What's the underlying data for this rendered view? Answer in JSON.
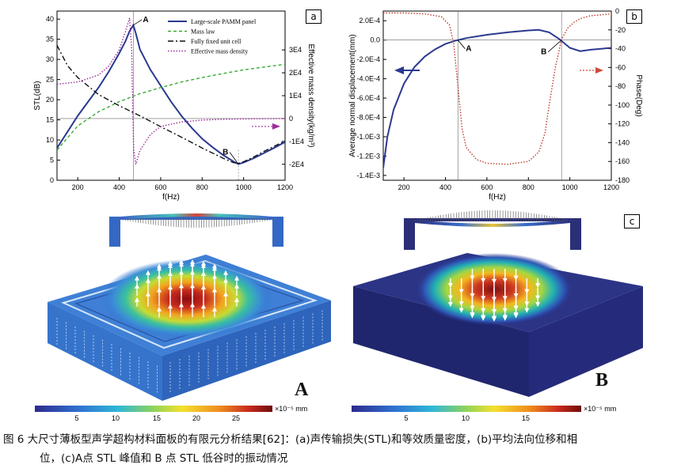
{
  "panels": {
    "a": {
      "tag": "a"
    },
    "b": {
      "tag": "b"
    },
    "c": {
      "tag": "c"
    }
  },
  "chart_data": [
    {
      "type": "line",
      "panel": "a",
      "xlabel": "f(Hz)",
      "ylabel_left": "STL(dB)",
      "ylabel_right": "Effective mass density(kg/m³)",
      "xlim": [
        100,
        1200
      ],
      "ylim_left": [
        0,
        42
      ],
      "ylim_right": [
        -27000.0,
        47000.0
      ],
      "x_ticks": [
        200,
        400,
        600,
        800,
        1000,
        1200
      ],
      "y_ticks_left": [
        0,
        5,
        10,
        15,
        20,
        25,
        30,
        35,
        40
      ],
      "y_ticks_right": [
        "-2E4",
        "-1E4",
        "0",
        "1E4",
        "2E4",
        "3E4"
      ],
      "y_ticks_right_values": [
        -20000,
        -10000,
        0,
        10000,
        20000,
        30000
      ],
      "annotations": [
        {
          "label": "A",
          "x": 468,
          "y": 38.5
        },
        {
          "label": "B",
          "x": 975,
          "y": 4
        }
      ],
      "series": [
        {
          "name": "Large-scale PAMM panel",
          "axis": "left",
          "color": "#2b3990",
          "style": "solid",
          "x": [
            100,
            150,
            200,
            250,
            300,
            350,
            400,
            430,
            450,
            468,
            480,
            500,
            550,
            600,
            650,
            700,
            750,
            800,
            850,
            900,
            950,
            975,
            1000,
            1050,
            1100,
            1150,
            1200
          ],
          "y": [
            8,
            12,
            16,
            19.5,
            23,
            27,
            31.5,
            34.5,
            37,
            38.5,
            36.5,
            32.5,
            27.5,
            23.5,
            19.5,
            16,
            13,
            10.3,
            8.2,
            6.3,
            4.7,
            4,
            4.4,
            5.5,
            6.8,
            8.1,
            9.5
          ]
        },
        {
          "name": "Mass law",
          "axis": "left",
          "color": "#3aaa35",
          "style": "dashed",
          "x": [
            100,
            200,
            300,
            400,
            500,
            600,
            700,
            800,
            900,
            1000,
            1100,
            1200
          ],
          "y": [
            7.5,
            13.5,
            17,
            19.5,
            21.5,
            23,
            24.4,
            25.5,
            26.5,
            27.4,
            28.1,
            28.8
          ]
        },
        {
          "name": "Fully fixed unit cell",
          "axis": "left",
          "color": "#111111",
          "style": "dashdot",
          "x": [
            100,
            150,
            200,
            300,
            400,
            500,
            600,
            700,
            800,
            900,
            950,
            975,
            1000,
            1050,
            1100,
            1150,
            1200
          ],
          "y": [
            33.5,
            28.5,
            25.5,
            21.3,
            18.5,
            16,
            13.3,
            10.7,
            8,
            5.5,
            4.4,
            4.2,
            4.6,
            5.8,
            7.2,
            8.5,
            9.8
          ]
        },
        {
          "name": "Effective mass density",
          "axis": "right",
          "color": "#9b2d9b",
          "style": "dotted",
          "x": [
            100,
            200,
            300,
            350,
            400,
            430,
            450,
            460,
            465,
            470,
            480,
            500,
            550,
            600,
            700,
            800,
            900,
            1000,
            1100,
            1200
          ],
          "y": [
            15000,
            16000,
            19000,
            23000,
            30000,
            38000,
            44000,
            30000,
            5000,
            -14000,
            -20000,
            -14000,
            -7000,
            -3500,
            -1500,
            -700,
            -350,
            -150,
            -60,
            0
          ]
        }
      ],
      "legend": [
        "Large-scale PAMM panel",
        "Mass law",
        "Fully fixed unit cell",
        "Effective  mass density"
      ]
    },
    {
      "type": "line",
      "panel": "b",
      "xlabel": "f(Hz)",
      "ylabel_left": "Average normal displacement(mm)",
      "ylabel_right": "Phase(Deg)",
      "xlim": [
        100,
        1200
      ],
      "ylim_left": [
        -0.00145,
        0.0003
      ],
      "ylim_right": [
        -180,
        0
      ],
      "x_ticks": [
        200,
        400,
        600,
        800,
        1000,
        1200
      ],
      "y_ticks_left": [
        "2.0E-4",
        "0.0",
        "-2.0E-4",
        "-4.0E-4",
        "-6.0E-4",
        "-8.0E-4",
        "-1.0E-3",
        "-1.2E-3",
        "-1.4E-3"
      ],
      "y_ticks_left_values": [
        0.0002,
        0,
        -0.0002,
        -0.0004,
        -0.0006,
        -0.0008,
        -0.001,
        -0.0012,
        -0.0014
      ],
      "y_ticks_right": [
        "0",
        "-20",
        "-40",
        "-60",
        "-80",
        "-100",
        "-120",
        "-140",
        "-160",
        "-180"
      ],
      "y_ticks_right_values": [
        0,
        -20,
        -40,
        -60,
        -80,
        -100,
        -120,
        -140,
        -160,
        -180
      ],
      "annotations": [
        {
          "label": "A",
          "x": 460,
          "y": 0
        },
        {
          "label": "B",
          "x": 960,
          "y": 0
        }
      ],
      "series": [
        {
          "name": "Average normal displacement",
          "axis": "left",
          "color": "#2b3990",
          "style": "solid",
          "x": [
            100,
            120,
            150,
            200,
            250,
            300,
            350,
            400,
            450,
            460,
            500,
            600,
            700,
            800,
            850,
            900,
            950,
            1000,
            1050,
            1100,
            1200
          ],
          "y": [
            -0.00132,
            -0.001,
            -0.00072,
            -0.00045,
            -0.00028,
            -0.00017,
            -9.5e-05,
            -4e-05,
            -5e-06,
            0,
            2e-05,
            5.5e-05,
            8e-05,
            0.0001,
            0.000105,
            8e-05,
            1e-05,
            -8e-05,
            -0.000115,
            -0.0001,
            -8e-05
          ]
        },
        {
          "name": "Phase",
          "axis": "right",
          "color": "#c0392b",
          "style": "dotted",
          "x": [
            100,
            200,
            300,
            380,
            420,
            440,
            460,
            480,
            500,
            550,
            600,
            700,
            800,
            850,
            880,
            900,
            930,
            960,
            990,
            1020,
            1050,
            1100,
            1200
          ],
          "y": [
            -2,
            -2,
            -3,
            -6,
            -15,
            -35,
            -80,
            -125,
            -145,
            -158,
            -162,
            -163,
            -160,
            -150,
            -130,
            -100,
            -60,
            -30,
            -18,
            -12,
            -8,
            -5,
            -3
          ]
        }
      ]
    }
  ],
  "colorbars": [
    {
      "name": "A",
      "ticks": [
        "5",
        "10",
        "15",
        "20",
        "25"
      ],
      "unit": "×10⁻⁵  mm"
    },
    {
      "name": "B",
      "ticks": [
        "5",
        "10",
        "15"
      ],
      "unit": "×10⁻⁵  mm"
    }
  ],
  "figure_labels": {
    "A": "A",
    "B": "B"
  },
  "caption": {
    "line1": "图 6   大尺寸薄板型声学超构材料面板的有限元分析结果[62]：(a)声传输损失(STL)和等效质量密度，(b)平均法向位移和相",
    "line2": "位，(c)A点 STL 峰值和 B 点 STL 低谷时的振动情况"
  },
  "colors": {
    "blue": "#2b3990",
    "green": "#3aaa35",
    "purple": "#9b2d9b",
    "red": "#c0392b",
    "arrow_red": "#d04a3a"
  }
}
